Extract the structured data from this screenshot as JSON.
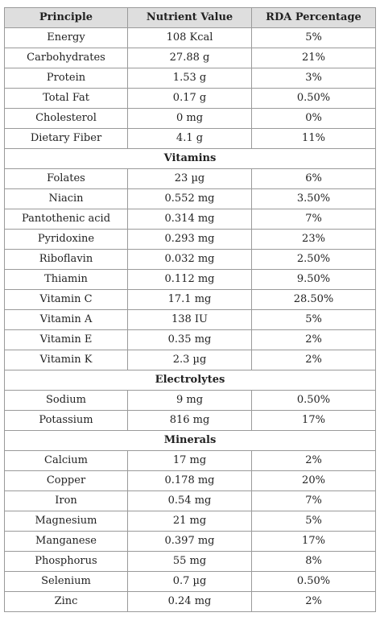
{
  "table": {
    "headers": [
      "Principle",
      "Nutrient Value",
      "RDA Percentage"
    ],
    "rows": [
      {
        "principle": "Energy",
        "value": "108 Kcal",
        "rda": "5%"
      },
      {
        "principle": "Carbohydrates",
        "value": "27.88 g",
        "rda": "21%"
      },
      {
        "principle": "Protein",
        "value": "1.53 g",
        "rda": "3%"
      },
      {
        "principle": "Total Fat",
        "value": "0.17 g",
        "rda": "0.50%"
      },
      {
        "principle": "Cholesterol",
        "value": "0 mg",
        "rda": "0%"
      },
      {
        "principle": "Dietary Fiber",
        "value": "4.1 g",
        "rda": "11%"
      },
      {
        "section": "Vitamins"
      },
      {
        "principle": "Folates",
        "value": "23 µg",
        "rda": "6%"
      },
      {
        "principle": "Niacin",
        "value": "0.552 mg",
        "rda": "3.50%"
      },
      {
        "principle": "Pantothenic acid",
        "value": "0.314 mg",
        "rda": "7%"
      },
      {
        "principle": "Pyridoxine",
        "value": "0.293 mg",
        "rda": "23%"
      },
      {
        "principle": "Riboflavin",
        "value": "0.032 mg",
        "rda": "2.50%"
      },
      {
        "principle": "Thiamin",
        "value": "0.112 mg",
        "rda": "9.50%"
      },
      {
        "principle": "Vitamin C",
        "value": "17.1 mg",
        "rda": "28.50%"
      },
      {
        "principle": "Vitamin A",
        "value": "138 IU",
        "rda": "5%"
      },
      {
        "principle": "Vitamin E",
        "value": "0.35 mg",
        "rda": "2%"
      },
      {
        "principle": "Vitamin K",
        "value": "2.3 µg",
        "rda": "2%"
      },
      {
        "section": "Electrolytes"
      },
      {
        "principle": "Sodium",
        "value": "9 mg",
        "rda": "0.50%"
      },
      {
        "principle": "Potassium",
        "value": "816 mg",
        "rda": "17%"
      },
      {
        "section": "Minerals"
      },
      {
        "principle": "Calcium",
        "value": "17 mg",
        "rda": "2%"
      },
      {
        "principle": "Copper",
        "value": "0.178 mg",
        "rda": "20%"
      },
      {
        "principle": "Iron",
        "value": "0.54 mg",
        "rda": "7%"
      },
      {
        "principle": "Magnesium",
        "value": "21 mg",
        "rda": "5%"
      },
      {
        "principle": "Manganese",
        "value": "0.397 mg",
        "rda": "17%"
      },
      {
        "principle": "Phosphorus",
        "value": "55 mg",
        "rda": "8%"
      },
      {
        "principle": "Selenium",
        "value": "0.7 µg",
        "rda": "0.50%"
      },
      {
        "principle": "Zinc",
        "value": "0.24 mg",
        "rda": "2%"
      }
    ]
  }
}
